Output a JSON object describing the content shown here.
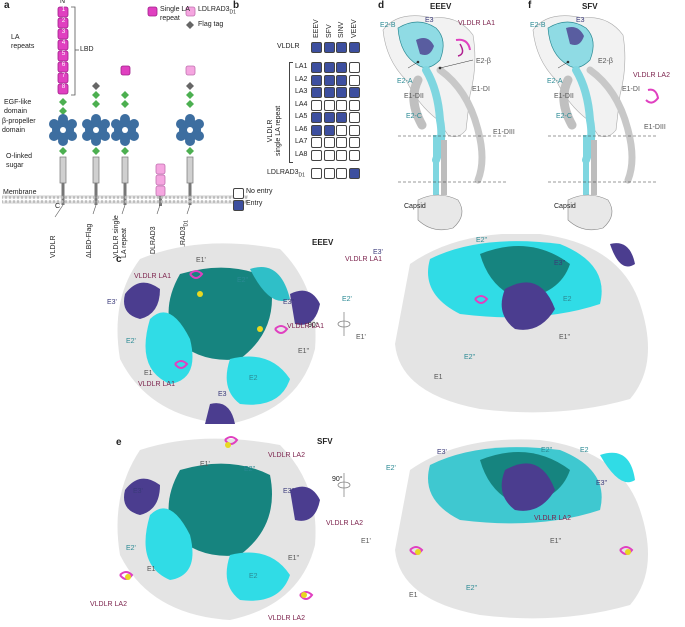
{
  "panels": {
    "a": "a",
    "b": "b",
    "c": "c",
    "d": "d",
    "e": "e",
    "f": "f"
  },
  "panel_a": {
    "n_term": "N",
    "c_term": "C",
    "la_repeats": "LA\nrepeats",
    "lbd": "LBD",
    "egf": "EGF-like\ndomain",
    "beta": "β-propeller\ndomain",
    "olinked": "O-linked\nsugar",
    "membrane": "Membrane",
    "single_la": "Single LA\nrepeat",
    "ldlrad3_legend": "LDLRAD3",
    "ldlrad3_sub": "D1",
    "flag_tag": "Flag tag",
    "la_numbers": [
      "1",
      "2",
      "3",
      "4",
      "5",
      "6",
      "7",
      "8"
    ],
    "constructs": [
      "VLDLR",
      "ΔLBD-Flag",
      "VLDLR single\nLA repeat",
      "LDLRAD3",
      "LDLRAD3"
    ],
    "construct_sub": [
      "",
      "",
      "",
      "",
      "D1"
    ]
  },
  "panel_b": {
    "columns": [
      "EEEV",
      "SFV",
      "SINV",
      "VEEV"
    ],
    "vldlr_label": "VLDLR",
    "vldlr_row": [
      1,
      1,
      1,
      1
    ],
    "side_label": "VLDLR\nsingle LA repeat",
    "la_rows": [
      {
        "label": "LA1",
        "values": [
          1,
          1,
          1,
          0
        ]
      },
      {
        "label": "LA2",
        "values": [
          1,
          1,
          1,
          0
        ]
      },
      {
        "label": "LA3",
        "values": [
          1,
          1,
          1,
          1
        ]
      },
      {
        "label": "LA4",
        "values": [
          0,
          0,
          0,
          0
        ]
      },
      {
        "label": "LA5",
        "values": [
          1,
          1,
          1,
          0
        ]
      },
      {
        "label": "LA6",
        "values": [
          1,
          1,
          0,
          0
        ]
      },
      {
        "label": "LA7",
        "values": [
          0,
          0,
          0,
          0
        ]
      },
      {
        "label": "LA8",
        "values": [
          0,
          0,
          0,
          0
        ]
      }
    ],
    "ldlrad3_label": "LDLRAD3",
    "ldlrad3_sub": "D1",
    "ldlrad3_row": [
      0,
      0,
      0,
      1
    ],
    "legend_no": "No entry",
    "legend_yes": "Entry",
    "color_entry": "#3d4f9f",
    "color_noentry": "#ffffff"
  },
  "panel_d": {
    "title": "EEEV",
    "labels": {
      "e3": "E3",
      "e2b": "E2-B",
      "la1": "VLDLR LA1",
      "e2beta": "E2-β",
      "e2a": "E2-A",
      "e1dii": "E1-DII",
      "e1di": "E1-DI",
      "e2c": "E2-C",
      "e1diii": "E1-DIII",
      "capsid": "Capsid"
    }
  },
  "panel_f": {
    "title": "SFV",
    "labels": {
      "e3": "E3",
      "e2b": "E2-B",
      "la2": "VLDLR LA2",
      "e2beta": "E2-β",
      "e2a": "E2-A",
      "e1dii": "E1-DII",
      "e1di": "E1-DI",
      "e2c": "E2-C",
      "e1diii": "E1-DIII",
      "capsid": "Capsid"
    }
  },
  "panel_c": {
    "title": "EEEV",
    "rot": "90°",
    "top": {
      "e1p": "E1'",
      "e2pp": "E2''",
      "e3p": "E3'",
      "e3pp": "E3''",
      "e2p": "E2'",
      "e1pp": "E1''",
      "e1": "E1",
      "e3": "E3",
      "e2": "E2",
      "la1a": "VLDLR LA1",
      "la1b": "VLDLR LA1",
      "la1c": "VLDLR LA1"
    },
    "side": {
      "e3p": "E3'",
      "e2pp": "E2''",
      "e3pp": "E3''",
      "e2p": "E2'",
      "e2": "E2",
      "e1p": "E1'",
      "e1pp": "E1''",
      "e2ppb": "E2''",
      "e1": "E1",
      "la1": "VLDLR LA1"
    }
  },
  "panel_e": {
    "title": "SFV",
    "rot": "90°",
    "top": {
      "e1p": "E1'",
      "e2pp": "E2''",
      "e3p": "E3'",
      "e3pp": "E3''",
      "e2p": "E2'",
      "e1": "E1",
      "e2": "E2",
      "e1pp": "E1''",
      "la2a": "VLDLR LA2",
      "la2b": "VLDLR LA2",
      "la2c": "VLDLR LA2"
    },
    "side": {
      "e3p": "E3'",
      "e2pp": "E2''",
      "e2": "E2",
      "e2p": "E2'",
      "e3pp": "E3''",
      "e1p": "E1'",
      "e1pp": "E1''",
      "e1": "E1",
      "e2ppb": "E2''",
      "la2a": "VLDLR LA2",
      "la2b": "VLDLR LA2"
    }
  },
  "colors": {
    "magenta": "#e040c0",
    "pink": "#f5a6e0",
    "navy": "#4b3d8f",
    "teal_dark": "#0f7a78",
    "cyan": "#2fe0e8",
    "gray_light": "#dcdcdc",
    "yellow": "#e8d820",
    "green": "#4caf50",
    "blue_prop": "#3d6ea0"
  }
}
